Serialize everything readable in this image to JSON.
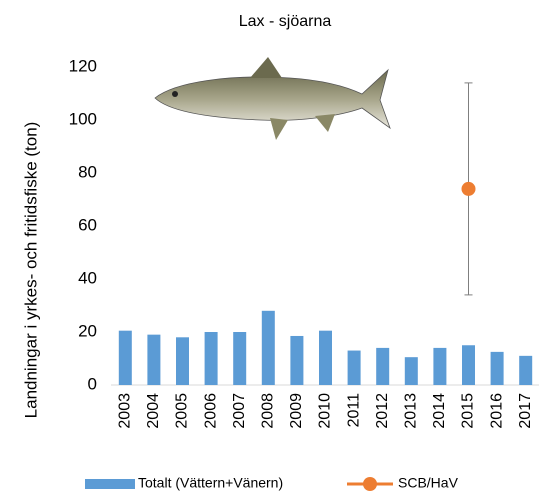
{
  "chart_data": {
    "type": "bar",
    "title": "Lax - sjöarna",
    "y_label": "Landningar i yrkes- och fritidsfiske (ton)",
    "categories": [
      "2003",
      "2004",
      "2005",
      "2006",
      "2007",
      "2008",
      "2009",
      "2010",
      "2011",
      "2012",
      "2013",
      "2014",
      "2015",
      "2016",
      "2017"
    ],
    "series": [
      {
        "name": "Totalt (Vättern+Vänern)",
        "color": "#5b9bd5",
        "kind": "bar",
        "values": [
          20.5,
          19,
          18,
          20,
          20,
          28,
          18.5,
          20.5,
          13,
          14,
          10.5,
          14,
          15,
          12.5,
          11
        ]
      },
      {
        "name": "SCB/HaV",
        "color": "#ed7d31",
        "kind": "point",
        "values": [
          null,
          null,
          null,
          null,
          null,
          null,
          null,
          null,
          null,
          null,
          null,
          null,
          74,
          null,
          null
        ],
        "errors": [
          null,
          null,
          null,
          null,
          null,
          null,
          null,
          null,
          null,
          null,
          null,
          null,
          40,
          null,
          null
        ]
      }
    ],
    "ylim": [
      0,
      120
    ],
    "yticks": [
      0,
      20,
      40,
      60,
      80,
      100,
      120
    ],
    "grid": false
  }
}
